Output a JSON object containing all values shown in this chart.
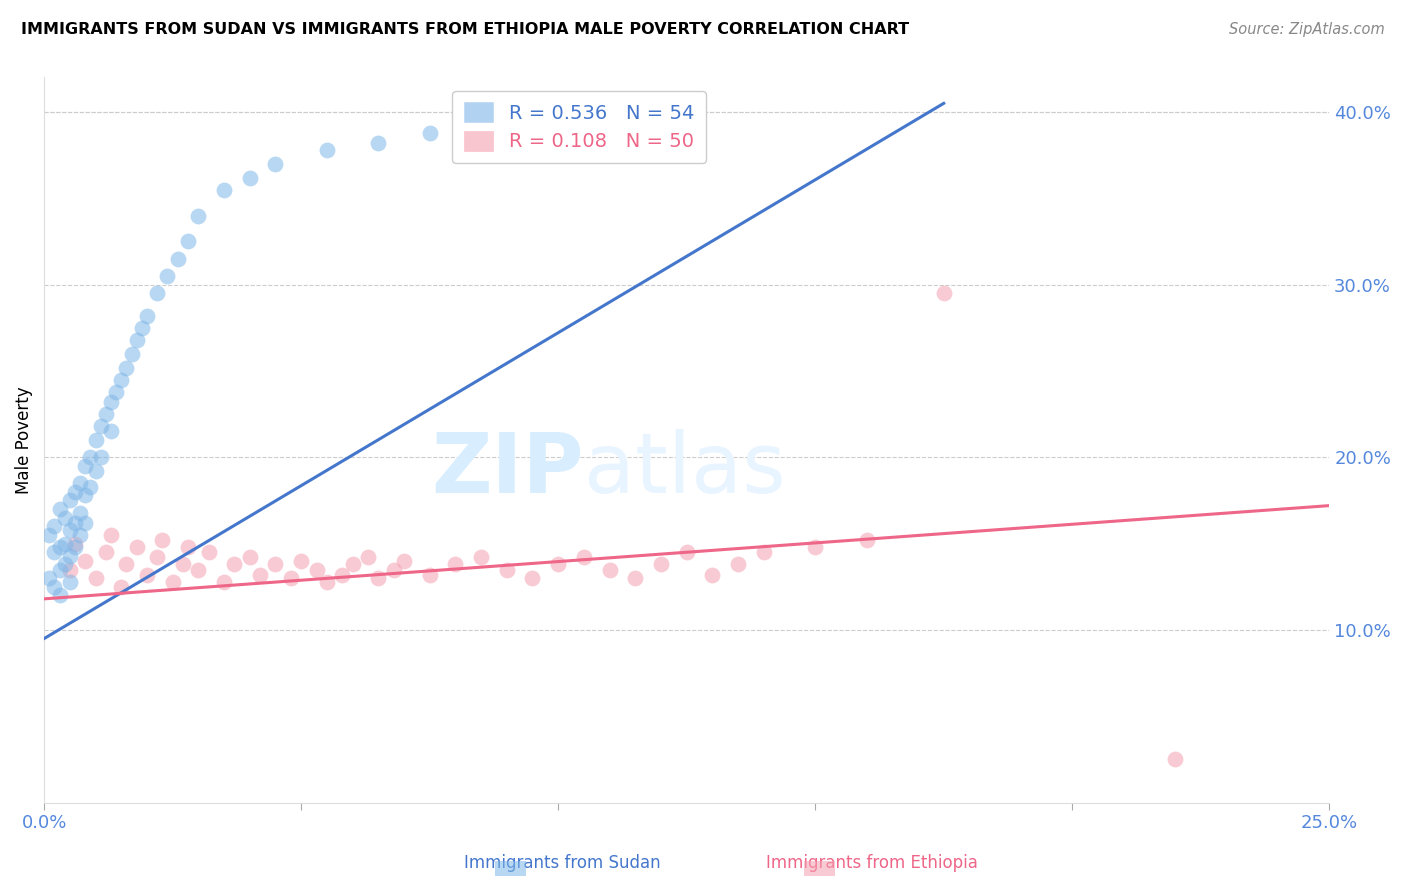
{
  "title": "IMMIGRANTS FROM SUDAN VS IMMIGRANTS FROM ETHIOPIA MALE POVERTY CORRELATION CHART",
  "source": "Source: ZipAtlas.com",
  "ylabel": "Male Poverty",
  "xlim": [
    0.0,
    0.25
  ],
  "ylim": [
    0.0,
    0.42
  ],
  "ytick_right_labels": [
    "40.0%",
    "30.0%",
    "20.0%",
    "10.0%"
  ],
  "ytick_right_values": [
    0.4,
    0.3,
    0.2,
    0.1
  ],
  "sudan_R": 0.536,
  "sudan_N": 54,
  "ethiopia_R": 0.108,
  "ethiopia_N": 50,
  "sudan_color": "#7EB6E8",
  "ethiopia_color": "#F4A0B0",
  "sudan_line_color": "#4477CC",
  "ethiopia_line_color": "#EE6688",
  "watermark_zip": "ZIP",
  "watermark_atlas": "atlas",
  "watermark_color": "#D8EEFF",
  "legend_label_sudan": "Immigrants from Sudan",
  "legend_label_ethiopia": "Immigrants from Ethiopia",
  "sudan_x": [
    0.001,
    0.001,
    0.002,
    0.002,
    0.002,
    0.003,
    0.003,
    0.003,
    0.003,
    0.004,
    0.004,
    0.004,
    0.005,
    0.005,
    0.005,
    0.005,
    0.006,
    0.006,
    0.006,
    0.007,
    0.007,
    0.007,
    0.008,
    0.008,
    0.008,
    0.009,
    0.009,
    0.01,
    0.01,
    0.011,
    0.011,
    0.012,
    0.013,
    0.013,
    0.014,
    0.015,
    0.016,
    0.017,
    0.018,
    0.019,
    0.02,
    0.022,
    0.024,
    0.026,
    0.028,
    0.03,
    0.035,
    0.04,
    0.045,
    0.055,
    0.065,
    0.075,
    0.095,
    0.12
  ],
  "sudan_y": [
    0.155,
    0.13,
    0.16,
    0.145,
    0.125,
    0.17,
    0.148,
    0.135,
    0.12,
    0.165,
    0.15,
    0.138,
    0.175,
    0.158,
    0.143,
    0.128,
    0.18,
    0.162,
    0.148,
    0.185,
    0.168,
    0.155,
    0.195,
    0.178,
    0.162,
    0.2,
    0.183,
    0.21,
    0.192,
    0.218,
    0.2,
    0.225,
    0.232,
    0.215,
    0.238,
    0.245,
    0.252,
    0.26,
    0.268,
    0.275,
    0.282,
    0.295,
    0.305,
    0.315,
    0.325,
    0.34,
    0.355,
    0.362,
    0.37,
    0.378,
    0.382,
    0.388,
    0.392,
    0.395
  ],
  "ethiopia_x": [
    0.005,
    0.006,
    0.008,
    0.01,
    0.012,
    0.013,
    0.015,
    0.016,
    0.018,
    0.02,
    0.022,
    0.023,
    0.025,
    0.027,
    0.028,
    0.03,
    0.032,
    0.035,
    0.037,
    0.04,
    0.042,
    0.045,
    0.048,
    0.05,
    0.053,
    0.055,
    0.058,
    0.06,
    0.063,
    0.065,
    0.068,
    0.07,
    0.075,
    0.08,
    0.085,
    0.09,
    0.095,
    0.1,
    0.105,
    0.11,
    0.115,
    0.12,
    0.125,
    0.13,
    0.135,
    0.14,
    0.15,
    0.16,
    0.175,
    0.22
  ],
  "ethiopia_y": [
    0.135,
    0.15,
    0.14,
    0.13,
    0.145,
    0.155,
    0.125,
    0.138,
    0.148,
    0.132,
    0.142,
    0.152,
    0.128,
    0.138,
    0.148,
    0.135,
    0.145,
    0.128,
    0.138,
    0.142,
    0.132,
    0.138,
    0.13,
    0.14,
    0.135,
    0.128,
    0.132,
    0.138,
    0.142,
    0.13,
    0.135,
    0.14,
    0.132,
    0.138,
    0.142,
    0.135,
    0.13,
    0.138,
    0.142,
    0.135,
    0.13,
    0.138,
    0.145,
    0.132,
    0.138,
    0.145,
    0.148,
    0.152,
    0.295,
    0.025
  ],
  "sudan_line_x": [
    0.0,
    0.175
  ],
  "sudan_line_y": [
    0.095,
    0.405
  ],
  "ethiopia_line_x": [
    0.0,
    0.25
  ],
  "ethiopia_line_y": [
    0.118,
    0.172
  ]
}
